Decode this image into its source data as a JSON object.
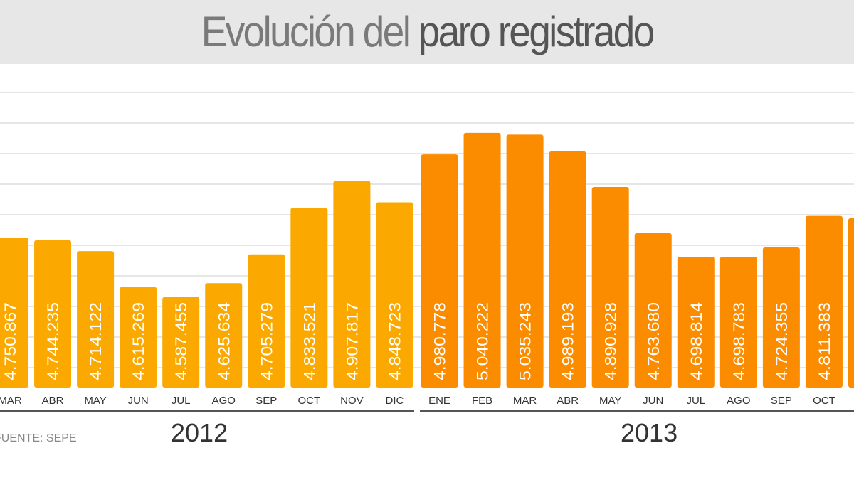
{
  "title": {
    "part1": "Evolución del",
    "part2": "paro registrado"
  },
  "source": "FUENTE: SEPE",
  "colors": {
    "y2012": "#fba900",
    "y2013": "#fb8c00",
    "grid": "#e6e6e6",
    "title_bg": "#e8e7e8"
  },
  "chart_data": {
    "type": "bar",
    "title": "Evolución del paro registrado",
    "xlabel": "",
    "ylabel": "",
    "grid": true,
    "ylim": [
      4338000,
      5100000
    ],
    "years": [
      {
        "label": "2012",
        "from": 0,
        "to": 9
      },
      {
        "label": "2013",
        "from": 10,
        "to": 20
      }
    ],
    "categories": [
      "MAR",
      "ABR",
      "MAY",
      "JUN",
      "JUL",
      "AGO",
      "SEP",
      "OCT",
      "NOV",
      "DIC",
      "ENE",
      "FEB",
      "MAR",
      "ABR",
      "MAY",
      "JUN",
      "JUL",
      "AGO",
      "SEP",
      "OCT",
      ""
    ],
    "series": [
      {
        "name": "Paro registrado",
        "values": [
          4750867,
          4744235,
          4714122,
          4615269,
          4587455,
          4625634,
          4705279,
          4833521,
          4907817,
          4848723,
          4980778,
          5040222,
          5035243,
          4989193,
          4890928,
          4763680,
          4698814,
          4698783,
          4724355,
          4811383,
          4805000
        ],
        "labels": [
          "4.750.867",
          "4.744.235",
          "4.714.122",
          "4.615.269",
          "4.587.455",
          "4.625.634",
          "4.705.279",
          "4.833.521",
          "4.907.817",
          "4.848.723",
          "4.980.778",
          "5.040.222",
          "5.035.243",
          "4.989.193",
          "4.890.928",
          "4.763.680",
          "4.698.814",
          "4.698.783",
          "4.724.355",
          "4.811.383",
          ""
        ]
      }
    ]
  }
}
